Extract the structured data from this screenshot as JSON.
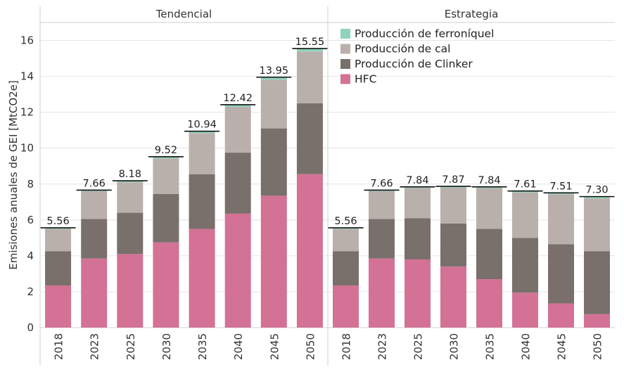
{
  "chart_data": {
    "type": "bar",
    "stacked": true,
    "ylabel": "Emisiones anuales de GEI [MtCO2e]",
    "ylim": [
      0,
      17
    ],
    "yticks": [
      0,
      2,
      4,
      6,
      8,
      10,
      12,
      14,
      16
    ],
    "grid": true,
    "legend_placement": "top-right",
    "stack_order": [
      "HFC",
      "Producción de Clinker",
      "Producción de cal",
      "Producción de ferroníquel"
    ],
    "legend": [
      {
        "name": "Producción de ferroníquel",
        "color": "#8fd3bd"
      },
      {
        "name": "Producción de cal",
        "color": "#bab0ab"
      },
      {
        "name": "Producción de Clinker",
        "color": "#796f6b"
      },
      {
        "name": "HFC",
        "color": "#d37295"
      }
    ],
    "panels": [
      {
        "title": "Tendencial",
        "categories": [
          "2018",
          "2023",
          "2025",
          "2030",
          "2035",
          "2040",
          "2045",
          "2050"
        ],
        "totals": [
          "5.56",
          "7.66",
          "8.18",
          "9.52",
          "10.94",
          "12.42",
          "13.95",
          "15.55"
        ],
        "series": [
          {
            "name": "HFC",
            "values": [
              2.35,
              3.85,
              4.1,
              4.75,
              5.5,
              6.35,
              7.35,
              8.55
            ]
          },
          {
            "name": "Producción de Clinker",
            "values": [
              1.9,
              2.2,
              2.3,
              2.7,
              3.05,
              3.4,
              3.75,
              3.95
            ]
          },
          {
            "name": "Producción de cal",
            "values": [
              1.25,
              1.55,
              1.7,
              1.98,
              2.29,
              2.55,
              2.72,
              2.88
            ]
          },
          {
            "name": "Producción de ferroníquel",
            "values": [
              0.06,
              0.06,
              0.08,
              0.09,
              0.1,
              0.12,
              0.13,
              0.17
            ]
          }
        ]
      },
      {
        "title": "Estrategia",
        "categories": [
          "2018",
          "2023",
          "2025",
          "2030",
          "2035",
          "2040",
          "2045",
          "2050"
        ],
        "totals": [
          "5.56",
          "7.66",
          "7.84",
          "7.87",
          "7.84",
          "7.61",
          "7.51",
          "7.30"
        ],
        "series": [
          {
            "name": "HFC",
            "values": [
              2.35,
              3.85,
              3.8,
              3.4,
              2.7,
              1.95,
              1.35,
              0.75
            ]
          },
          {
            "name": "Producción de Clinker",
            "values": [
              1.9,
              2.2,
              2.3,
              2.4,
              2.8,
              3.05,
              3.3,
              3.5
            ]
          },
          {
            "name": "Producción de cal",
            "values": [
              1.25,
              1.55,
              1.68,
              2.0,
              2.27,
              2.53,
              2.78,
              2.95
            ]
          },
          {
            "name": "Producción de ferroníquel",
            "values": [
              0.06,
              0.06,
              0.06,
              0.07,
              0.07,
              0.08,
              0.08,
              0.1
            ]
          }
        ]
      }
    ]
  }
}
